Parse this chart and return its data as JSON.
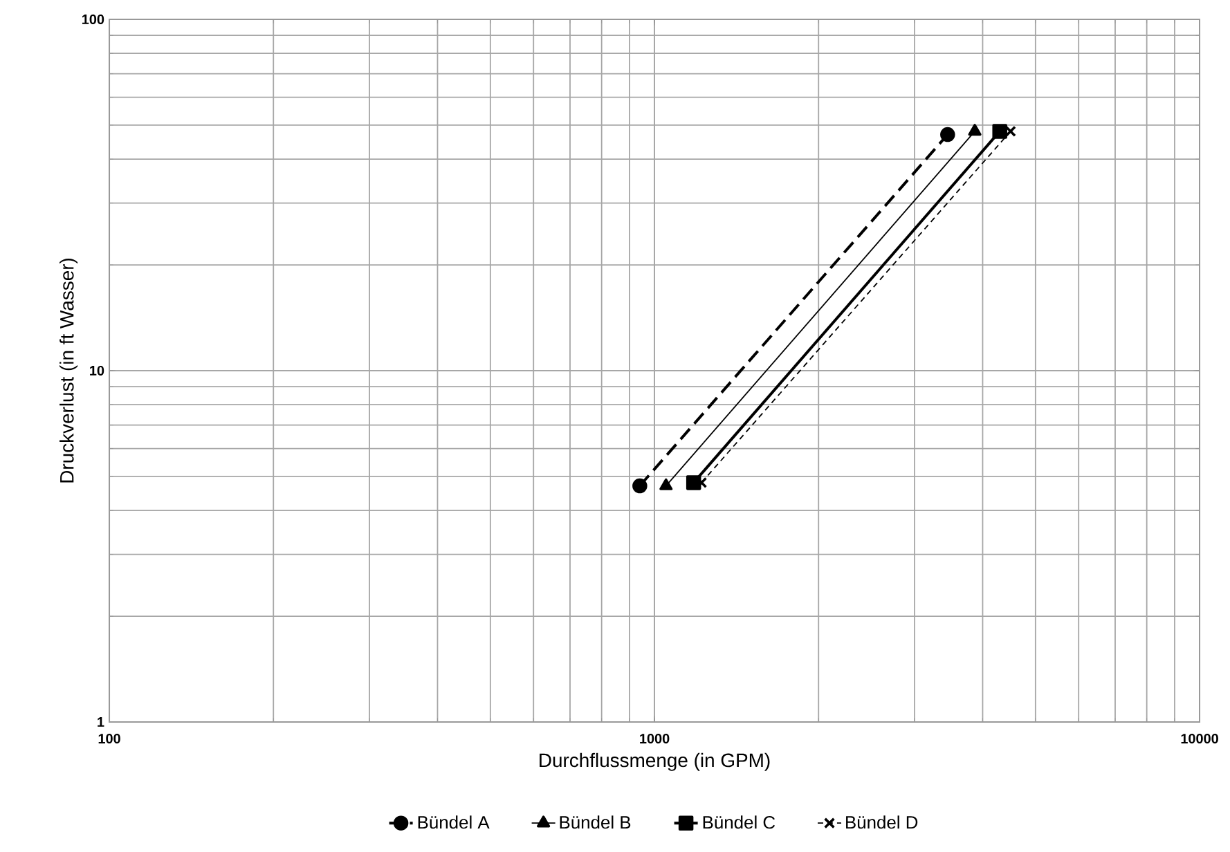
{
  "chart_data": {
    "type": "line",
    "xlabel": "Durchflussmenge (in GPM)",
    "ylabel": "Druckverlust (in ft Wasser)",
    "log": "xy",
    "grid": true,
    "legend": "bottom",
    "xlim": [
      100,
      10000
    ],
    "xticks": [
      100,
      1000,
      10000
    ],
    "ylim": [
      1,
      100
    ],
    "yticks": [
      1,
      10,
      100
    ],
    "series": [
      {
        "name": "Bündel A",
        "color": "#000000",
        "marker": "circle",
        "line_style": "dashed",
        "x": [
          940,
          3450
        ],
        "values": [
          4.7,
          47
        ]
      },
      {
        "name": "Bündel B",
        "color": "#000000",
        "marker": "triangle",
        "line_style": "solid",
        "x": [
          1050,
          3870
        ],
        "values": [
          4.7,
          48
        ]
      },
      {
        "name": "Bündel C",
        "color": "#000000",
        "marker": "square",
        "line_style": "solid",
        "x": [
          1180,
          4300
        ],
        "values": [
          4.8,
          48
        ]
      },
      {
        "name": "Bündel D",
        "color": "#000000",
        "marker": "cross",
        "line_style": "dashed",
        "x": [
          1220,
          4500
        ],
        "values": [
          4.8,
          48
        ]
      }
    ]
  }
}
